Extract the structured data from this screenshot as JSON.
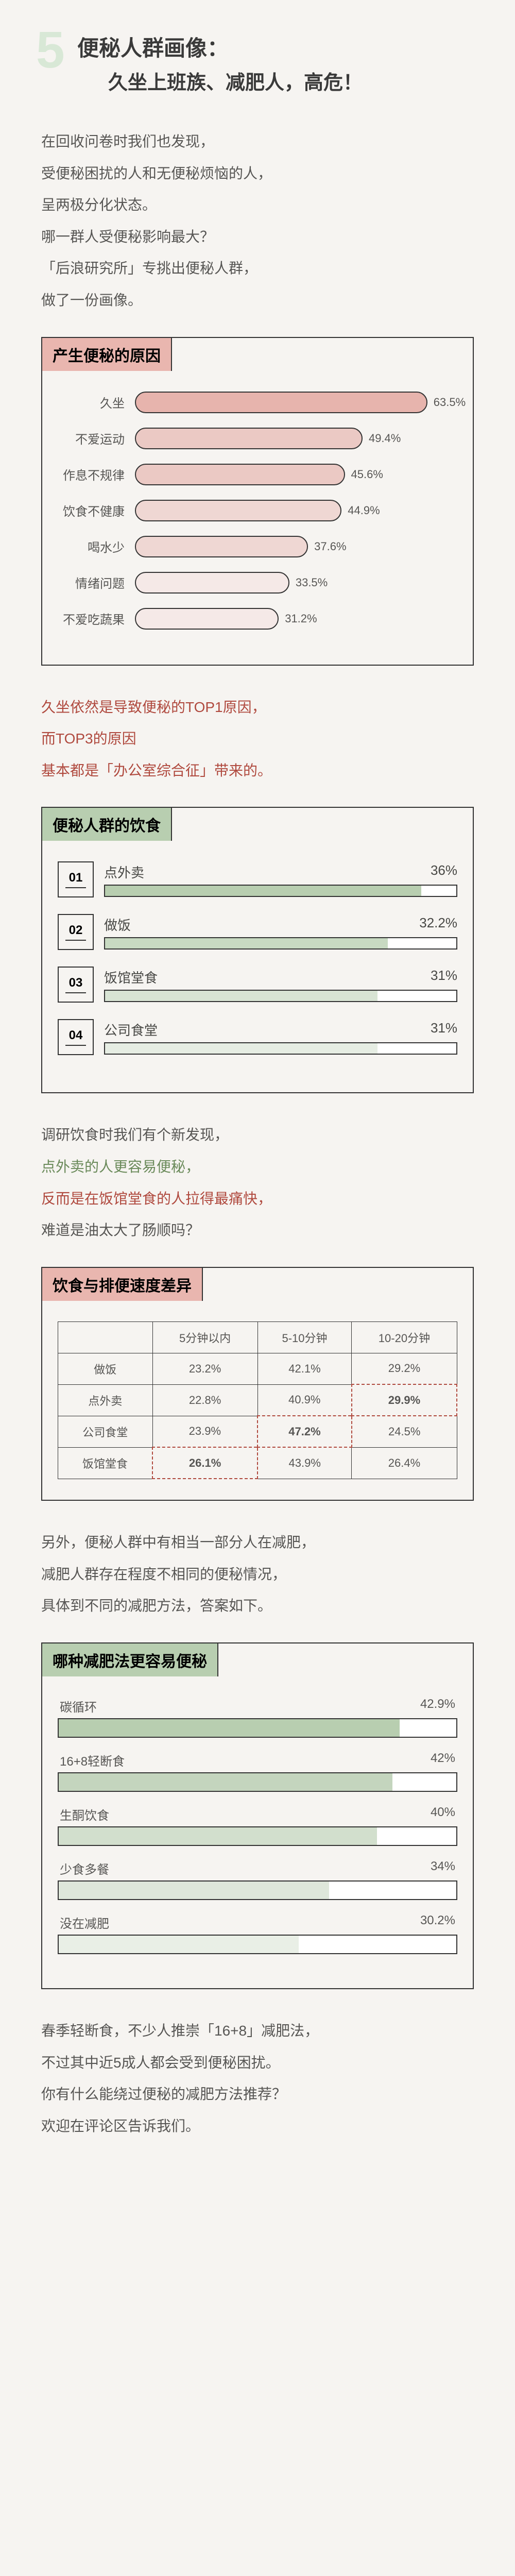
{
  "header": {
    "num": "5",
    "title": "便秘人群画像：",
    "subtitle": "久坐上班族、减肥人，高危！"
  },
  "intro": [
    "在回收问卷时我们也发现，",
    "受便秘困扰的人和无便秘烦恼的人，",
    "呈两极分化状态。",
    "哪一群人受便秘影响最大？",
    "「后浪研究所」专挑出便秘人群，",
    "做了一份画像。"
  ],
  "chart1": {
    "title": "产生便秘的原因",
    "items": [
      {
        "label": "久坐",
        "val": 63.5,
        "color": "#e7b4ad"
      },
      {
        "label": "不爱运动",
        "val": 49.4,
        "color": "#ebc9c4"
      },
      {
        "label": "作息不规律",
        "val": 45.6,
        "color": "#ebc9c4"
      },
      {
        "label": "饮食不健康",
        "val": 44.9,
        "color": "#efd7d3"
      },
      {
        "label": "喝水少",
        "val": 37.6,
        "color": "#efd7d3"
      },
      {
        "label": "情绪问题",
        "val": 33.5,
        "color": "#f5e9e7"
      },
      {
        "label": "不爱吃蔬果",
        "val": 31.2,
        "color": "#f5e9e7"
      }
    ],
    "max": 70
  },
  "note1": [
    "久坐依然是导致便秘的TOP1原因，",
    "而TOP3的原因",
    "基本都是「办公室综合征」带来的。"
  ],
  "chart2": {
    "title": "便秘人群的饮食",
    "items": [
      {
        "rank": "01",
        "label": "点外卖",
        "val": 36.0,
        "color": "#b8ceb0"
      },
      {
        "rank": "02",
        "label": "做饭",
        "val": 32.2,
        "color": "#c8dac2"
      },
      {
        "rank": "03",
        "label": "饭馆堂食",
        "val": 31.0,
        "color": "#d8e4d4"
      },
      {
        "rank": "04",
        "label": "公司食堂",
        "val": 31.0,
        "color": "#e6ede3"
      }
    ],
    "max": 40
  },
  "note2": [
    {
      "t": "调研饮食时我们有个新发现，",
      "c": ""
    },
    {
      "t": "点外卖的人更容易便秘，",
      "c": "g"
    },
    {
      "t": "反而是在饭馆堂食的人拉得最痛快，",
      "c": "r"
    },
    {
      "t": "难道是油太大了肠顺吗？",
      "c": ""
    }
  ],
  "chart3": {
    "title": "饮食与排便速度差异",
    "cols": [
      "",
      "5分钟以内",
      "5-10分钟",
      "10-20分钟"
    ],
    "rows": [
      {
        "l": "做饭",
        "c": [
          "23.2%",
          "42.1%",
          "29.2%"
        ],
        "hi": -1
      },
      {
        "l": "点外卖",
        "c": [
          "22.8%",
          "40.9%",
          "29.9%"
        ],
        "hi": 2
      },
      {
        "l": "公司食堂",
        "c": [
          "23.9%",
          "47.2%",
          "24.5%"
        ],
        "hi": 1
      },
      {
        "l": "饭馆堂食",
        "c": [
          "26.1%",
          "43.9%",
          "26.4%"
        ],
        "hi": 0
      }
    ]
  },
  "note3": [
    "另外，便秘人群中有相当一部分人在减肥，",
    "减肥人群存在程度不相同的便秘情况，",
    "具体到不同的减肥方法，答案如下。"
  ],
  "chart4": {
    "title": "哪种减肥法更容易便秘",
    "items": [
      {
        "label": "碳循环",
        "val": 42.9,
        "color": "#b8ceb0"
      },
      {
        "label": "16+8轻断食",
        "val": 42.0,
        "color": "#c4d5be"
      },
      {
        "label": "生酮饮食",
        "val": 40.0,
        "color": "#d2dfcd"
      },
      {
        "label": "少食多餐",
        "val": 34.0,
        "color": "#dee7da"
      },
      {
        "label": "没在减肥",
        "val": 30.2,
        "color": "#e9efe6"
      }
    ],
    "max": 50
  },
  "note4": [
    "春季轻断食，不少人推崇「16+8」减肥法，",
    "不过其中近5成人都会受到便秘困扰。",
    "你有什么能绕过便秘的减肥方法推荐？",
    "欢迎在评论区告诉我们。"
  ]
}
